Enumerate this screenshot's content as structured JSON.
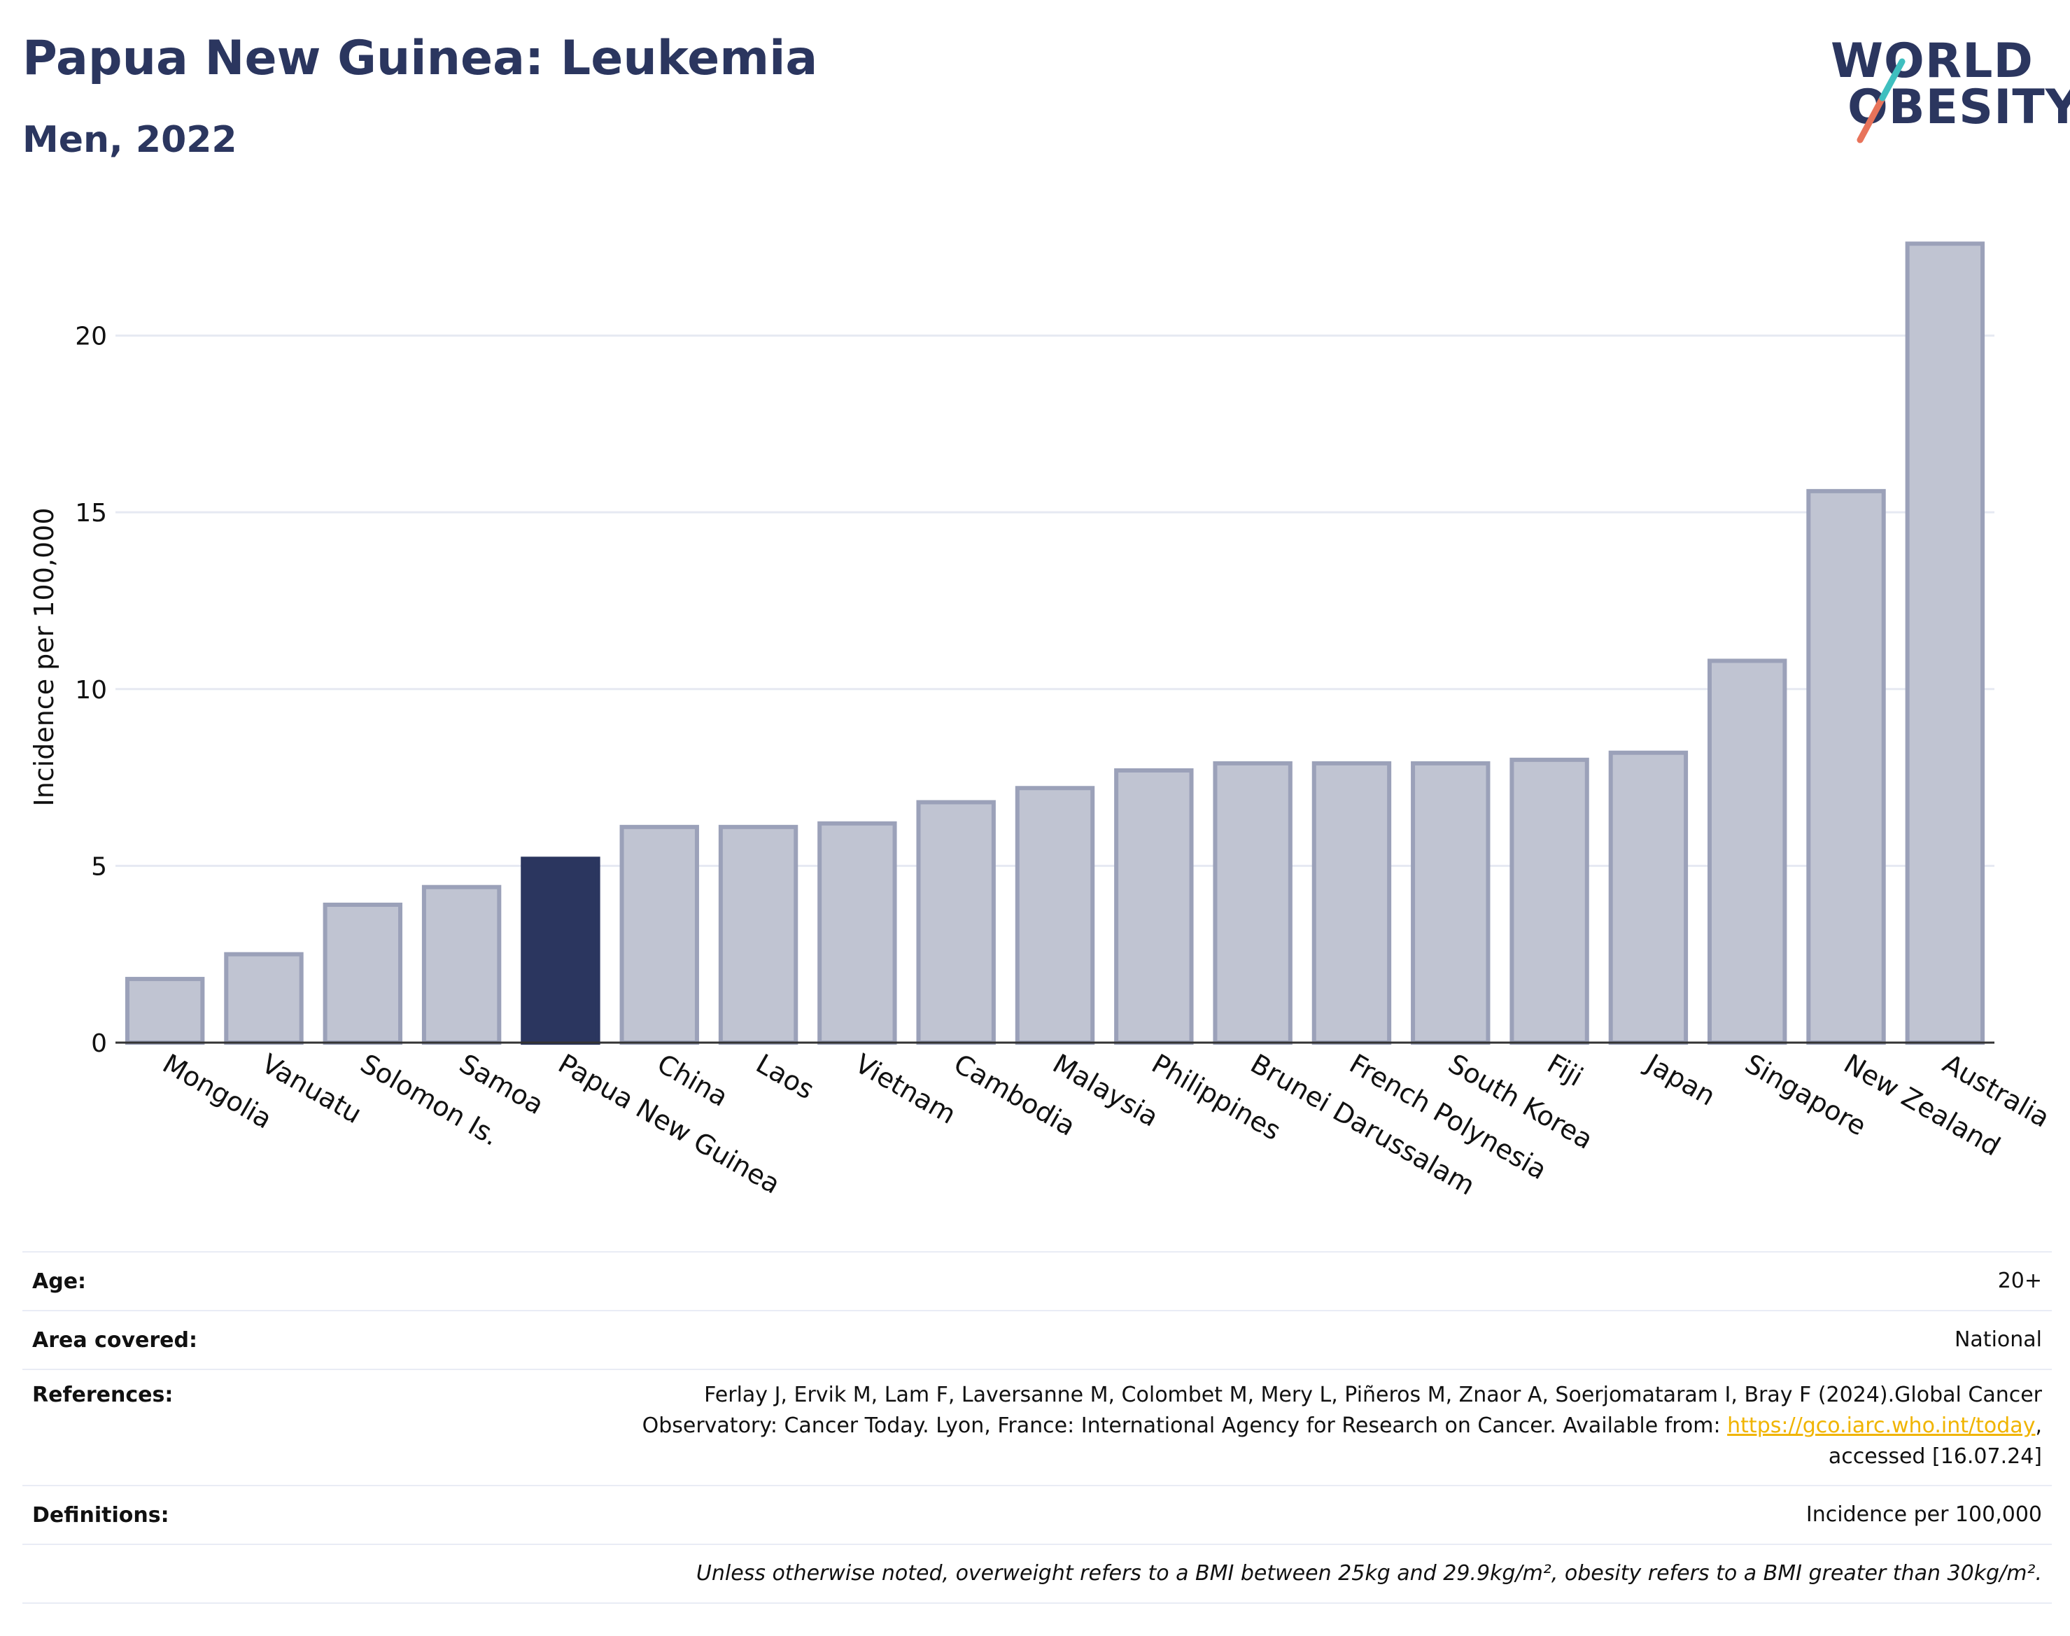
{
  "header": {
    "title": "Papua New Guinea: Leukemia",
    "subtitle": "Men, 2022",
    "logo_line1": "WORLD",
    "logo_line2": "OBESITY"
  },
  "colors": {
    "highlight": "#2b365f",
    "bar_fill": "#c0c4d2",
    "bar_stroke": "#9ba1b9",
    "grid": "#e6e9f2",
    "text": "#111111",
    "logo_teal": "#3fbfbf",
    "logo_coral": "#e8735a",
    "link": "#f0b400"
  },
  "chart_data": {
    "type": "bar",
    "ylabel": "Incidence per 100,000",
    "ylim": [
      0,
      23
    ],
    "yticks": [
      0,
      5,
      10,
      15,
      20
    ],
    "grid": true,
    "highlight_category": "Papua New Guinea",
    "categories": [
      "Mongolia",
      "Vanuatu",
      "Solomon Is.",
      "Samoa",
      "Papua New Guinea",
      "China",
      "Laos",
      "Vietnam",
      "Cambodia",
      "Malaysia",
      "Philippines",
      "Brunei Darussalam",
      "French Polynesia",
      "South Korea",
      "Fiji",
      "Japan",
      "Singapore",
      "New Zealand",
      "Australia"
    ],
    "values": [
      1.8,
      2.5,
      3.9,
      4.4,
      5.2,
      6.1,
      6.1,
      6.2,
      6.8,
      7.2,
      7.7,
      7.9,
      7.9,
      7.9,
      8.0,
      8.2,
      10.8,
      15.6,
      22.6
    ]
  },
  "meta": {
    "age_label": "Age:",
    "age_value": "20+",
    "area_label": "Area covered:",
    "area_value": "National",
    "references_label": "References:",
    "references_text_1": "Ferlay J, Ervik M, Lam F, Laversanne M, Colombet M, Mery L, Piñeros M, Znaor A, Soerjomataram I, Bray F (2024).Global Cancer",
    "references_text_2": "Observatory: Cancer Today. Lyon, France: International Agency for Research on Cancer. Available from: ",
    "references_link": "https://gco.iarc.who.int/today",
    "references_text_3": "accessed [16.07.24]",
    "definitions_label": "Definitions:",
    "definitions_value": "Incidence per 100,000",
    "note": "Unless otherwise noted, overweight refers to a BMI between 25kg and 29.9kg/m², obesity refers to a BMI greater than 30kg/m²."
  }
}
